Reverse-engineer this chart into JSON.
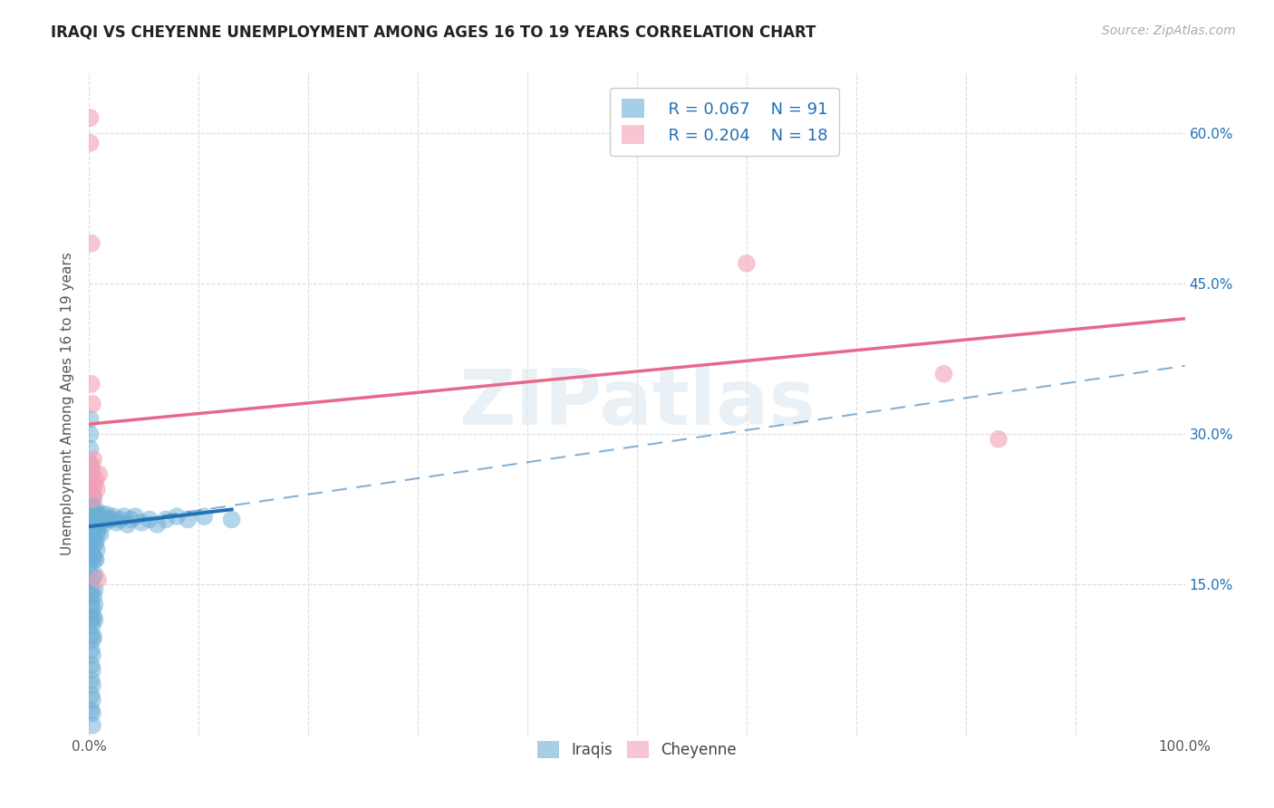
{
  "title": "IRAQI VS CHEYENNE UNEMPLOYMENT AMONG AGES 16 TO 19 YEARS CORRELATION CHART",
  "source": "Source: ZipAtlas.com",
  "ylabel": "Unemployment Among Ages 16 to 19 years",
  "xlim": [
    0.0,
    1.0
  ],
  "ylim": [
    0.0,
    0.66
  ],
  "xticks": [
    0.0,
    0.1,
    0.2,
    0.3,
    0.4,
    0.5,
    0.6,
    0.7,
    0.8,
    0.9,
    1.0
  ],
  "xticklabels": [
    "0.0%",
    "",
    "",
    "",
    "",
    "",
    "",
    "",
    "",
    "",
    "100.0%"
  ],
  "yticks": [
    0.0,
    0.15,
    0.3,
    0.45,
    0.6
  ],
  "yticklabels_right": [
    "",
    "15.0%",
    "30.0%",
    "45.0%",
    "60.0%"
  ],
  "background_color": "#ffffff",
  "grid_color": "#cccccc",
  "watermark": "ZIPatlas",
  "legend_R_iraqis": "R = 0.067",
  "legend_N_iraqis": "N = 91",
  "legend_R_cheyenne": "R = 0.204",
  "legend_N_cheyenne": "N = 18",
  "iraqis_color": "#6baed6",
  "cheyenne_color": "#f4a0b5",
  "iraqis_line_color": "#2171b5",
  "cheyenne_line_color": "#e8688a",
  "iraqis_scatter_x": [
    0.001,
    0.001,
    0.001,
    0.001,
    0.001,
    0.001,
    0.001,
    0.001,
    0.001,
    0.001,
    0.002,
    0.002,
    0.002,
    0.002,
    0.002,
    0.002,
    0.002,
    0.002,
    0.002,
    0.002,
    0.002,
    0.002,
    0.002,
    0.002,
    0.002,
    0.002,
    0.002,
    0.002,
    0.003,
    0.003,
    0.003,
    0.003,
    0.003,
    0.003,
    0.003,
    0.003,
    0.003,
    0.003,
    0.003,
    0.003,
    0.003,
    0.004,
    0.004,
    0.004,
    0.004,
    0.004,
    0.004,
    0.004,
    0.004,
    0.005,
    0.005,
    0.005,
    0.005,
    0.005,
    0.005,
    0.005,
    0.005,
    0.006,
    0.006,
    0.006,
    0.006,
    0.007,
    0.007,
    0.007,
    0.008,
    0.008,
    0.009,
    0.01,
    0.01,
    0.011,
    0.012,
    0.013,
    0.014,
    0.016,
    0.018,
    0.02,
    0.022,
    0.025,
    0.028,
    0.032,
    0.035,
    0.038,
    0.042,
    0.048,
    0.055,
    0.062,
    0.07,
    0.08,
    0.09,
    0.105,
    0.13
  ],
  "iraqis_scatter_y": [
    0.195,
    0.21,
    0.225,
    0.24,
    0.255,
    0.27,
    0.285,
    0.3,
    0.315,
    0.16,
    0.145,
    0.13,
    0.115,
    0.1,
    0.085,
    0.07,
    0.055,
    0.04,
    0.025,
    0.175,
    0.19,
    0.205,
    0.218,
    0.232,
    0.246,
    0.26,
    0.155,
    0.14,
    0.125,
    0.11,
    0.095,
    0.08,
    0.065,
    0.05,
    0.035,
    0.022,
    0.01,
    0.18,
    0.2,
    0.215,
    0.228,
    0.238,
    0.218,
    0.198,
    0.178,
    0.158,
    0.138,
    0.118,
    0.098,
    0.22,
    0.205,
    0.19,
    0.175,
    0.16,
    0.145,
    0.13,
    0.115,
    0.225,
    0.208,
    0.192,
    0.175,
    0.215,
    0.2,
    0.185,
    0.22,
    0.205,
    0.21,
    0.215,
    0.2,
    0.215,
    0.22,
    0.21,
    0.215,
    0.22,
    0.215,
    0.215,
    0.218,
    0.212,
    0.215,
    0.218,
    0.21,
    0.215,
    0.218,
    0.212,
    0.215,
    0.21,
    0.215,
    0.218,
    0.215,
    0.218,
    0.215
  ],
  "cheyenne_scatter_x": [
    0.001,
    0.001,
    0.002,
    0.002,
    0.002,
    0.003,
    0.003,
    0.003,
    0.004,
    0.004,
    0.005,
    0.006,
    0.007,
    0.008,
    0.009,
    0.6,
    0.78,
    0.83
  ],
  "cheyenne_scatter_y": [
    0.615,
    0.59,
    0.49,
    0.35,
    0.27,
    0.265,
    0.245,
    0.33,
    0.275,
    0.235,
    0.25,
    0.255,
    0.245,
    0.155,
    0.26,
    0.47,
    0.36,
    0.295
  ],
  "iraqis_solid_line_x": [
    0.0,
    0.13
  ],
  "iraqis_solid_line_y": [
    0.208,
    0.225
  ],
  "iraqis_dash_line_x": [
    0.0,
    1.0
  ],
  "iraqis_dash_line_y": [
    0.208,
    0.368
  ],
  "cheyenne_solid_line_x": [
    0.0,
    1.0
  ],
  "cheyenne_solid_line_y": [
    0.31,
    0.415
  ]
}
